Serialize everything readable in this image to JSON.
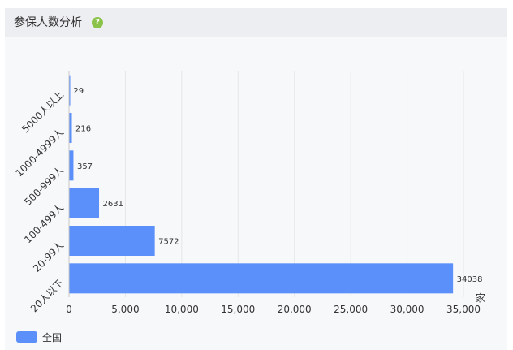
{
  "header": {
    "title": "参保人数分析",
    "help_icon": "question-circle-icon"
  },
  "colors": {
    "bar": "#5b8ff9",
    "grid": "#e6e6e6",
    "axis": "#333333",
    "header_bg": "#edeef2",
    "panel_bg": "#f7f8fa",
    "help_icon": "#8bc34a"
  },
  "chart_data": {
    "type": "bar",
    "orientation": "horizontal",
    "categories": [
      "20人以下",
      "20-99人",
      "100-499人",
      "500-999人",
      "1000-4999人",
      "5000人以上"
    ],
    "series": [
      {
        "name": "全国",
        "values": [
          34038,
          7572,
          2631,
          357,
          216,
          29
        ]
      }
    ],
    "xlabel": "家",
    "xlim": [
      0,
      35000
    ],
    "xticks": [
      0,
      5000,
      10000,
      15000,
      20000,
      25000,
      30000,
      35000
    ],
    "xtick_labels": [
      "0",
      "5,000",
      "10,000",
      "15,000",
      "20,000",
      "25,000",
      "30,000",
      "35,000"
    ],
    "grid": true,
    "legend_position": "bottom-left",
    "data_labels": true
  }
}
